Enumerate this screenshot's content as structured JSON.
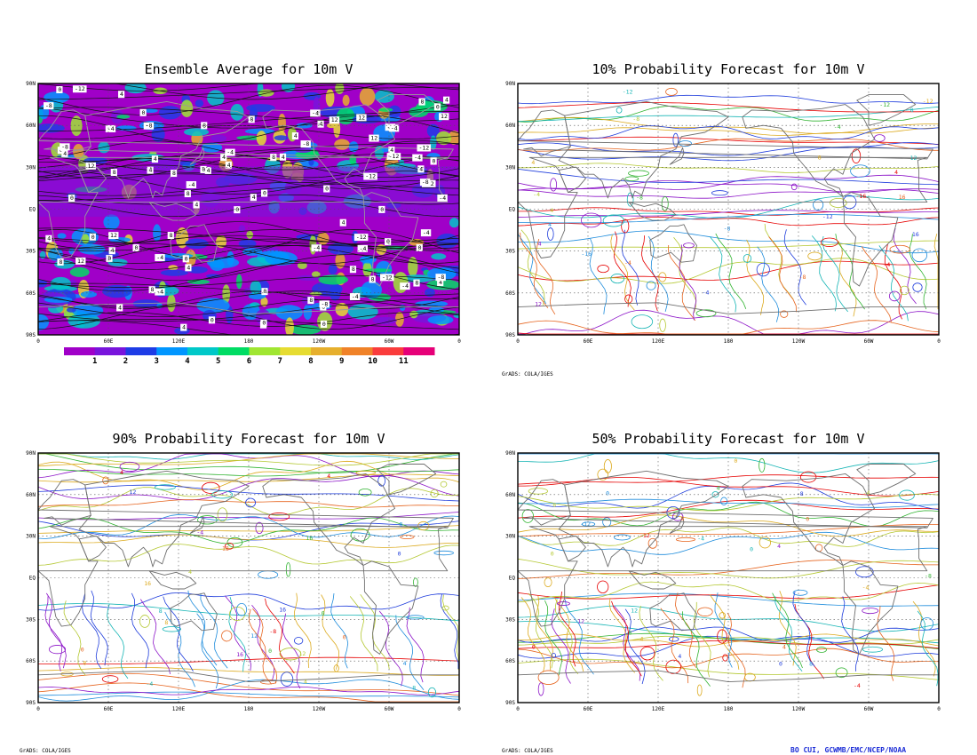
{
  "panels": [
    {
      "id": "ensemble",
      "title": "Ensemble Average for 10m V",
      "style": "filled",
      "contour_labels": [
        "-4",
        "0",
        "4",
        "8",
        "-8",
        "12",
        "-12",
        "0",
        "4",
        "-4",
        "4",
        "0",
        "8"
      ]
    },
    {
      "id": "p10",
      "title": "10% Probability Forecast for 10m V",
      "style": "contour",
      "contour_labels": [
        "4",
        "-4",
        "8",
        "-8",
        "-12",
        "12",
        "-16",
        "16",
        "4",
        "-4",
        "-8",
        "-12"
      ]
    },
    {
      "id": "p90",
      "title": "90% Probability Forecast for 10m V",
      "style": "contour",
      "contour_labels": [
        "4",
        "0",
        "8",
        "12",
        "16",
        "-4",
        "-8",
        "12",
        "16",
        "4",
        "0",
        "8"
      ]
    },
    {
      "id": "p50",
      "title": "50% Probability Forecast for 10m V",
      "style": "contour",
      "contour_labels": [
        "0",
        "4",
        "-4",
        "8",
        "-8",
        "12",
        "-12",
        "0",
        "4",
        "-4",
        "8",
        "0"
      ]
    }
  ],
  "axes": {
    "lat_labels": [
      "90N",
      "60N",
      "30N",
      "EQ",
      "30S",
      "60S",
      "90S"
    ],
    "lon_labels": [
      "0",
      "60E",
      "120E",
      "180",
      "120W",
      "60W",
      "0"
    ]
  },
  "colorbar": {
    "labels": [
      "1",
      "2",
      "3",
      "4",
      "5",
      "6",
      "7",
      "8",
      "9",
      "10",
      "11"
    ],
    "colors": [
      "#a000c8",
      "#7814dc",
      "#1e3ce6",
      "#0096ff",
      "#00c8c8",
      "#00dc64",
      "#a0e632",
      "#e6dc32",
      "#e6af2d",
      "#f08228",
      "#fa3c3c",
      "#e60078"
    ]
  },
  "contour_colors": [
    "#e60000",
    "#e6641e",
    "#dcaa1e",
    "#b4c832",
    "#32b432",
    "#14b4b4",
    "#1e8cdc",
    "#1e3cdc",
    "#8c14c8"
  ],
  "credits": {
    "grads_1": "GrADS: COLA/IGES",
    "grads_2": "GrADS: COLA/IGES",
    "grads_3": "GrADS: COLA/IGES",
    "author": "BO CUI, GCWMB/EMC/NCEP/NOAA"
  }
}
